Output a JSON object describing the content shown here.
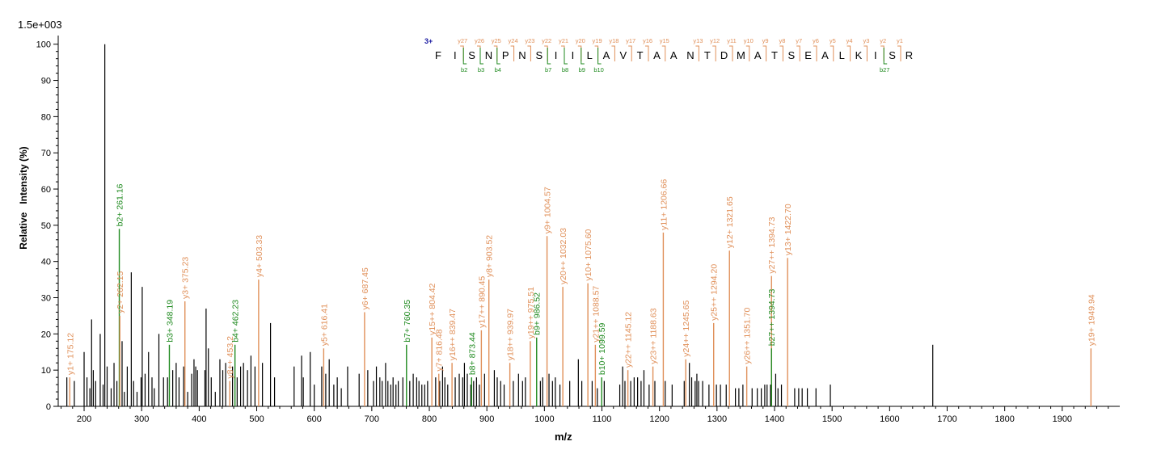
{
  "scale_label": "1.5e+003",
  "colors": {
    "y_ion": "#e0905a",
    "b_ion": "#1f8a1f",
    "unassigned": "#000000",
    "charge": "#1a1aa0"
  },
  "chart_data": {
    "type": "bar",
    "title": "",
    "xlabel": "m/z",
    "ylabel": "Relative   Intensity (%)",
    "xlim": [
      155,
      2000
    ],
    "ylim": [
      0,
      101.5
    ],
    "xticks": [
      200,
      300,
      400,
      500,
      600,
      700,
      800,
      900,
      1000,
      1100,
      1200,
      1300,
      1400,
      1500,
      1600,
      1700,
      1800,
      1900
    ],
    "yticks": [
      0,
      10,
      20,
      30,
      40,
      50,
      60,
      70,
      80,
      90,
      100
    ],
    "annotated_peaks": [
      {
        "mz": 175.12,
        "intensity": 8,
        "ion": "y",
        "label": "y1+ 175.12"
      },
      {
        "mz": 261.16,
        "intensity": 49,
        "ion": "b",
        "label": "b2+ 261.16"
      },
      {
        "mz": 262.15,
        "intensity": 25,
        "ion": "y",
        "label": "y2+ 262.15"
      },
      {
        "mz": 348.19,
        "intensity": 17,
        "ion": "b",
        "label": "b3+ 348.19"
      },
      {
        "mz": 375.23,
        "intensity": 29,
        "ion": "y",
        "label": "y3+ 375.23"
      },
      {
        "mz": 453.2,
        "intensity": 7,
        "ion": "y",
        "label": "y8++ 453.2"
      },
      {
        "mz": 462.23,
        "intensity": 17,
        "ion": "b",
        "label": "b4+ 462.23"
      },
      {
        "mz": 503.33,
        "intensity": 35,
        "ion": "y",
        "label": "y4+ 503.33"
      },
      {
        "mz": 616.41,
        "intensity": 16,
        "ion": "y",
        "label": "y5+ 616.41"
      },
      {
        "mz": 687.45,
        "intensity": 26,
        "ion": "y",
        "label": "y6+ 687.45"
      },
      {
        "mz": 760.35,
        "intensity": 17,
        "ion": "b",
        "label": "b7+ 760.35"
      },
      {
        "mz": 804.42,
        "intensity": 19,
        "ion": "y",
        "label": "y15++ 804.42"
      },
      {
        "mz": 816.48,
        "intensity": 9,
        "ion": "y",
        "label": "y7+ 816.48"
      },
      {
        "mz": 839.47,
        "intensity": 12,
        "ion": "y",
        "label": "y16++ 839.47"
      },
      {
        "mz": 873.44,
        "intensity": 8,
        "ion": "b",
        "label": "b8+ 873.44"
      },
      {
        "mz": 890.45,
        "intensity": 21,
        "ion": "y",
        "label": "y17++ 890.45"
      },
      {
        "mz": 903.52,
        "intensity": 35,
        "ion": "y",
        "label": "y8+ 903.52"
      },
      {
        "mz": 939.97,
        "intensity": 12,
        "ion": "y",
        "label": "y18++ 939.97"
      },
      {
        "mz": 975.51,
        "intensity": 18,
        "ion": "y",
        "label": "y19++ 975.51"
      },
      {
        "mz": 986.52,
        "intensity": 19,
        "ion": "b",
        "label": "b9+ 986.52"
      },
      {
        "mz": 1004.57,
        "intensity": 47,
        "ion": "y",
        "label": "y9+ 1004.57"
      },
      {
        "mz": 1032.03,
        "intensity": 33,
        "ion": "y",
        "label": "y20++ 1032.03"
      },
      {
        "mz": 1075.6,
        "intensity": 34,
        "ion": "y",
        "label": "y10+ 1075.60"
      },
      {
        "mz": 1088.57,
        "intensity": 17,
        "ion": "y",
        "label": "y21++ 1088.57"
      },
      {
        "mz": 1099.59,
        "intensity": 8,
        "ion": "b",
        "label": "b10+ 1099.59"
      },
      {
        "mz": 1145.12,
        "intensity": 10,
        "ion": "y",
        "label": "y22++ 1145.12"
      },
      {
        "mz": 1188.63,
        "intensity": 11,
        "ion": "y",
        "label": "y23++ 1188.63"
      },
      {
        "mz": 1206.66,
        "intensity": 48,
        "ion": "y",
        "label": "y11+ 1206.66"
      },
      {
        "mz": 1245.65,
        "intensity": 13,
        "ion": "y",
        "label": "y24++ 1245.65"
      },
      {
        "mz": 1294.2,
        "intensity": 23,
        "ion": "y",
        "label": "y25++ 1294.20"
      },
      {
        "mz": 1321.65,
        "intensity": 43,
        "ion": "y",
        "label": "y12+ 1321.65"
      },
      {
        "mz": 1351.7,
        "intensity": 11,
        "ion": "y",
        "label": "y26++ 1351.70"
      },
      {
        "mz": 1394.73,
        "intensity": 36,
        "ion": "y",
        "label": "y27++ 1394.73"
      },
      {
        "mz": 1394.73,
        "intensity": 16,
        "ion": "b",
        "label": "b27++ 1394.73"
      },
      {
        "mz": 1422.7,
        "intensity": 41,
        "ion": "y",
        "label": "y13+ 1422.70"
      },
      {
        "mz": 1949.94,
        "intensity": 16,
        "ion": "y",
        "label": "y19+ 1949.94"
      }
    ],
    "unassigned_peaks": [
      [
        170,
        8
      ],
      [
        183,
        7
      ],
      [
        200,
        15
      ],
      [
        205,
        8
      ],
      [
        210,
        5
      ],
      [
        213,
        24
      ],
      [
        216,
        10
      ],
      [
        220,
        7
      ],
      [
        228,
        20
      ],
      [
        233,
        6
      ],
      [
        236,
        100
      ],
      [
        240,
        11
      ],
      [
        247,
        5
      ],
      [
        252,
        12
      ],
      [
        257,
        7
      ],
      [
        266,
        18
      ],
      [
        270,
        4
      ],
      [
        275,
        11
      ],
      [
        282,
        37
      ],
      [
        286,
        7
      ],
      [
        292,
        4
      ],
      [
        299,
        8
      ],
      [
        301,
        33
      ],
      [
        306,
        9
      ],
      [
        312,
        15
      ],
      [
        318,
        8
      ],
      [
        322,
        5
      ],
      [
        330,
        20
      ],
      [
        338,
        8
      ],
      [
        345,
        8
      ],
      [
        354,
        10
      ],
      [
        360,
        12
      ],
      [
        365,
        8
      ],
      [
        373,
        11
      ],
      [
        380,
        4
      ],
      [
        387,
        9
      ],
      [
        391,
        13
      ],
      [
        394,
        11
      ],
      [
        397,
        10
      ],
      [
        410,
        10
      ],
      [
        412,
        27
      ],
      [
        416,
        16
      ],
      [
        421,
        8
      ],
      [
        428,
        4
      ],
      [
        436,
        13
      ],
      [
        441,
        10
      ],
      [
        446,
        12
      ],
      [
        458,
        11
      ],
      [
        466,
        8
      ],
      [
        472,
        11
      ],
      [
        477,
        12
      ],
      [
        484,
        10
      ],
      [
        490,
        14
      ],
      [
        497,
        11
      ],
      [
        510,
        12
      ],
      [
        524,
        23
      ],
      [
        531,
        8
      ],
      [
        565,
        11
      ],
      [
        578,
        14
      ],
      [
        581,
        8
      ],
      [
        593,
        15
      ],
      [
        600,
        6
      ],
      [
        613,
        11
      ],
      [
        620,
        9
      ],
      [
        626,
        13
      ],
      [
        634,
        6
      ],
      [
        640,
        8
      ],
      [
        647,
        5
      ],
      [
        658,
        11
      ],
      [
        678,
        9
      ],
      [
        693,
        10
      ],
      [
        703,
        7
      ],
      [
        708,
        11
      ],
      [
        714,
        8
      ],
      [
        718,
        7
      ],
      [
        724,
        12
      ],
      [
        728,
        7
      ],
      [
        733,
        6
      ],
      [
        737,
        8
      ],
      [
        742,
        6
      ],
      [
        746,
        7
      ],
      [
        754,
        8
      ],
      [
        766,
        7
      ],
      [
        772,
        9
      ],
      [
        778,
        8
      ],
      [
        782,
        7
      ],
      [
        787,
        6
      ],
      [
        792,
        6
      ],
      [
        797,
        7
      ],
      [
        811,
        8
      ],
      [
        818,
        7
      ],
      [
        823,
        11
      ],
      [
        827,
        8
      ],
      [
        832,
        6
      ],
      [
        845,
        8
      ],
      [
        852,
        9
      ],
      [
        858,
        8
      ],
      [
        861,
        12
      ],
      [
        866,
        9
      ],
      [
        872,
        6
      ],
      [
        877,
        7
      ],
      [
        882,
        8
      ],
      [
        887,
        6
      ],
      [
        896,
        9
      ],
      [
        913,
        10
      ],
      [
        918,
        8
      ],
      [
        924,
        7
      ],
      [
        930,
        6
      ],
      [
        946,
        7
      ],
      [
        955,
        9
      ],
      [
        962,
        7
      ],
      [
        967,
        8
      ],
      [
        993,
        7
      ],
      [
        997,
        8
      ],
      [
        1008,
        9
      ],
      [
        1014,
        7
      ],
      [
        1019,
        8
      ],
      [
        1027,
        6
      ],
      [
        1044,
        7
      ],
      [
        1059,
        13
      ],
      [
        1065,
        7
      ],
      [
        1083,
        7
      ],
      [
        1092,
        5
      ],
      [
        1104,
        7
      ],
      [
        1131,
        6
      ],
      [
        1136,
        11
      ],
      [
        1140,
        7
      ],
      [
        1150,
        7
      ],
      [
        1156,
        8
      ],
      [
        1162,
        8
      ],
      [
        1168,
        7
      ],
      [
        1173,
        10
      ],
      [
        1182,
        6
      ],
      [
        1192,
        7
      ],
      [
        1210,
        7
      ],
      [
        1222,
        6
      ],
      [
        1243,
        7
      ],
      [
        1252,
        12
      ],
      [
        1256,
        8
      ],
      [
        1262,
        7
      ],
      [
        1265,
        9
      ],
      [
        1268,
        7
      ],
      [
        1275,
        7
      ],
      [
        1286,
        6
      ],
      [
        1299,
        6
      ],
      [
        1306,
        6
      ],
      [
        1316,
        6
      ],
      [
        1332,
        5
      ],
      [
        1338,
        5
      ],
      [
        1345,
        6
      ],
      [
        1361,
        5
      ],
      [
        1370,
        5
      ],
      [
        1377,
        5
      ],
      [
        1383,
        6
      ],
      [
        1387,
        6
      ],
      [
        1393,
        6
      ],
      [
        1402,
        9
      ],
      [
        1406,
        5
      ],
      [
        1412,
        6
      ],
      [
        1435,
        5
      ],
      [
        1442,
        5
      ],
      [
        1448,
        5
      ],
      [
        1457,
        5
      ],
      [
        1472,
        5
      ],
      [
        1497,
        6
      ],
      [
        1675,
        17
      ]
    ],
    "sequence": {
      "charge": "3+",
      "residues": [
        "F",
        "I",
        "S",
        "N",
        "P",
        "N",
        "S",
        "I",
        "I",
        "L",
        "A",
        "V",
        "T",
        "A",
        "A",
        "N",
        "T",
        "D",
        "M",
        "A",
        "T",
        "S",
        "E",
        "A",
        "L",
        "K",
        "I",
        "S",
        "R"
      ],
      "y_ions": [
        {
          "after": 2,
          "label": "y27"
        },
        {
          "after": 3,
          "label": "y26"
        },
        {
          "after": 4,
          "label": "y25"
        },
        {
          "after": 5,
          "label": "y24"
        },
        {
          "after": 6,
          "label": "y23"
        },
        {
          "after": 7,
          "label": "y22"
        },
        {
          "after": 8,
          "label": "y21"
        },
        {
          "after": 9,
          "label": "y20"
        },
        {
          "after": 10,
          "label": "y19"
        },
        {
          "after": 11,
          "label": "y18"
        },
        {
          "after": 12,
          "label": "y17"
        },
        {
          "after": 13,
          "label": "y16"
        },
        {
          "after": 14,
          "label": "y15"
        },
        {
          "after": 16,
          "label": "y13"
        },
        {
          "after": 17,
          "label": "y12"
        },
        {
          "after": 18,
          "label": "y11"
        },
        {
          "after": 19,
          "label": "y10"
        },
        {
          "after": 20,
          "label": "y9"
        },
        {
          "after": 21,
          "label": "y8"
        },
        {
          "after": 22,
          "label": "y7"
        },
        {
          "after": 23,
          "label": "y6"
        },
        {
          "after": 24,
          "label": "y5"
        },
        {
          "after": 25,
          "label": "y4"
        },
        {
          "after": 26,
          "label": "y3"
        },
        {
          "after": 27,
          "label": "y2"
        },
        {
          "after": 28,
          "label": "y1"
        }
      ],
      "b_ions": [
        {
          "after": 2,
          "label": "b2"
        },
        {
          "after": 3,
          "label": "b3"
        },
        {
          "after": 4,
          "label": "b4"
        },
        {
          "after": 7,
          "label": "b7"
        },
        {
          "after": 8,
          "label": "b8"
        },
        {
          "after": 9,
          "label": "b9"
        },
        {
          "after": 10,
          "label": "b10"
        },
        {
          "after": 27,
          "label": "b27"
        }
      ]
    }
  }
}
